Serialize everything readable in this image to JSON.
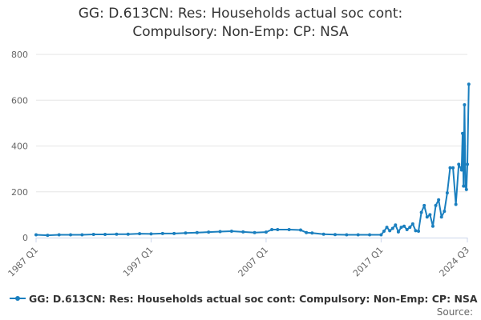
{
  "chart_data": {
    "type": "line",
    "title_lines": [
      "GG: D.613CN: Res: Households actual soc cont:",
      "Compulsory: Non-Emp: CP: NSA"
    ],
    "xlabel": "",
    "ylabel": "",
    "x_tick_labels": [
      "1987 Q1",
      "1997 Q1",
      "2007 Q1",
      "2017 Q1",
      "2024 Q3"
    ],
    "y_ticks": [
      0,
      200,
      400,
      600,
      800
    ],
    "ylim": [
      0,
      800
    ],
    "grid": "horizontal",
    "legend_position": "bottom",
    "series": [
      {
        "name": "GG: D.613CN: Res: Households actual soc cont: Compulsory: Non-Emp: CP: NSA",
        "color": "#1a7fbf",
        "points": [
          [
            "1987 Q1",
            12
          ],
          [
            "1988 Q1",
            10
          ],
          [
            "1989 Q1",
            12
          ],
          [
            "1990 Q1",
            12
          ],
          [
            "1991 Q1",
            12
          ],
          [
            "1992 Q1",
            14
          ],
          [
            "1993 Q1",
            14
          ],
          [
            "1994 Q1",
            15
          ],
          [
            "1995 Q1",
            15
          ],
          [
            "1996 Q1",
            17
          ],
          [
            "1997 Q1",
            16
          ],
          [
            "1998 Q1",
            18
          ],
          [
            "1999 Q1",
            18
          ],
          [
            "2000 Q1",
            20
          ],
          [
            "2001 Q1",
            22
          ],
          [
            "2002 Q1",
            24
          ],
          [
            "2003 Q1",
            26
          ],
          [
            "2004 Q1",
            28
          ],
          [
            "2005 Q1",
            25
          ],
          [
            "2006 Q1",
            22
          ],
          [
            "2007 Q1",
            24
          ],
          [
            "2007 Q3",
            35
          ],
          [
            "2008 Q1",
            35
          ],
          [
            "2009 Q1",
            35
          ],
          [
            "2010 Q1",
            33
          ],
          [
            "2010 Q3",
            22
          ],
          [
            "2011 Q1",
            20
          ],
          [
            "2012 Q1",
            15
          ],
          [
            "2013 Q1",
            13
          ],
          [
            "2014 Q1",
            12
          ],
          [
            "2015 Q1",
            12
          ],
          [
            "2016 Q1",
            12
          ],
          [
            "2017 Q1",
            12
          ],
          [
            "2017 Q2",
            28
          ],
          [
            "2017 Q3",
            45
          ],
          [
            "2017 Q4",
            30
          ],
          [
            "2018 Q1",
            40
          ],
          [
            "2018 Q2",
            55
          ],
          [
            "2018 Q3",
            25
          ],
          [
            "2018 Q4",
            45
          ],
          [
            "2019 Q1",
            50
          ],
          [
            "2019 Q2",
            35
          ],
          [
            "2019 Q3",
            45
          ],
          [
            "2019 Q4",
            60
          ],
          [
            "2020 Q1",
            30
          ],
          [
            "2020 Q2",
            28
          ],
          [
            "2020 Q3",
            110
          ],
          [
            "2020 Q4",
            140
          ],
          [
            "2021 Q1",
            90
          ],
          [
            "2021 Q2",
            100
          ],
          [
            "2021 Q3",
            50
          ],
          [
            "2021 Q4",
            140
          ],
          [
            "2022 Q1",
            165
          ],
          [
            "2022 Q2",
            90
          ],
          [
            "2022 Q3",
            115
          ],
          [
            "2022 Q4",
            195
          ],
          [
            "2023 Q1",
            305
          ],
          [
            "2023 Q2",
            305
          ],
          [
            "2023 Q3",
            145
          ],
          [
            "2023 Q4",
            320
          ],
          [
            "2024 Q1",
            295
          ],
          [
            "2024 Q1",
            455
          ],
          [
            "2024 Q1",
            225
          ],
          [
            "2024 Q2",
            580
          ],
          [
            "2024 Q2",
            225
          ],
          [
            "2024 Q2",
            210
          ],
          [
            "2024 Q3",
            320
          ],
          [
            "2024 Q3",
            670
          ]
        ]
      }
    ]
  },
  "legend": {
    "label": "GG: D.613CN: Res: Households actual soc cont: Compulsory: Non-Emp: CP: NSA"
  },
  "source_label": "Source:"
}
